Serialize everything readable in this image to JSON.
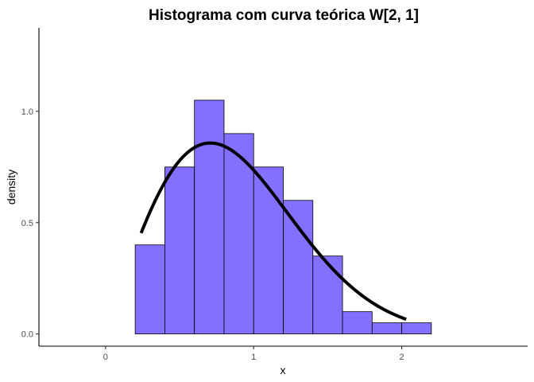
{
  "chart_data": {
    "type": "bar",
    "title": "Histograma com curva teórica W[2, 1]",
    "xlabel": "x",
    "ylabel": "density",
    "xlim": [
      -0.45,
      2.85
    ],
    "ylim": [
      -0.055,
      1.375
    ],
    "x_ticks": [
      0,
      1,
      2
    ],
    "x_tick_labels": [
      "0",
      "1",
      "2"
    ],
    "y_ticks": [
      0.0,
      0.5,
      1.0
    ],
    "y_tick_labels": [
      "0.0",
      "0.5",
      "1.0"
    ],
    "grid": false,
    "bar_color": "#8370FF",
    "histogram": {
      "bin_width": 0.2,
      "bins": [
        {
          "start": 0.2,
          "end": 0.4,
          "density": 0.4
        },
        {
          "start": 0.4,
          "end": 0.6,
          "density": 0.75
        },
        {
          "start": 0.6,
          "end": 0.8,
          "density": 1.05
        },
        {
          "start": 0.8,
          "end": 1.0,
          "density": 0.9
        },
        {
          "start": 1.0,
          "end": 1.2,
          "density": 0.75
        },
        {
          "start": 1.2,
          "end": 1.4,
          "density": 0.6
        },
        {
          "start": 1.4,
          "end": 1.6,
          "density": 0.35
        },
        {
          "start": 1.6,
          "end": 1.8,
          "density": 0.1
        },
        {
          "start": 1.8,
          "end": 2.0,
          "density": 0.05
        },
        {
          "start": 2.0,
          "end": 2.2,
          "density": 0.05
        }
      ]
    },
    "curve": {
      "color": "#000000",
      "distribution": "Weibull",
      "shape": 2,
      "scale": 1,
      "x_range": [
        0.24,
        2.03
      ]
    }
  }
}
